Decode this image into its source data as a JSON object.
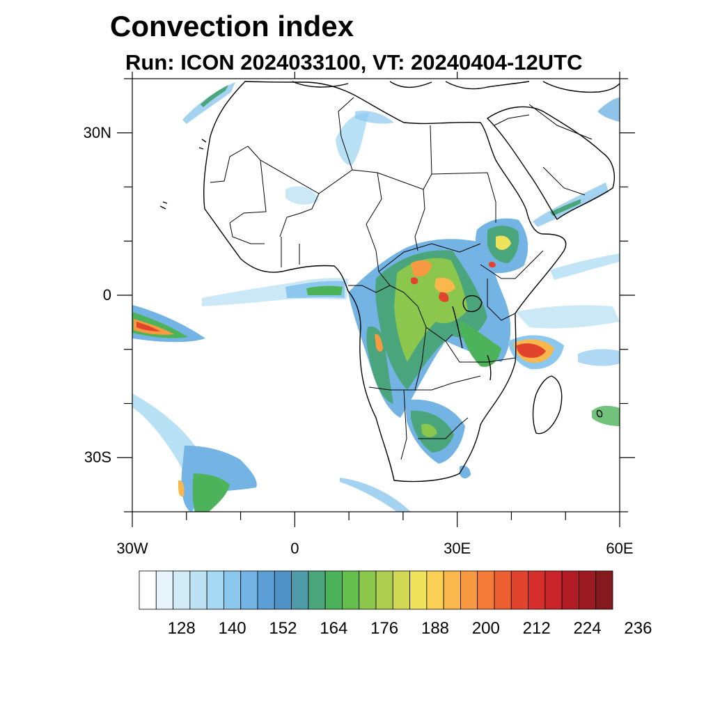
{
  "header": {
    "title": "Convection index",
    "subtitle": "Run: ICON 2024033100,  VT: 20240404-12UTC"
  },
  "map": {
    "lon_range": [
      -30,
      60
    ],
    "lat_range": [
      -40,
      40
    ],
    "lat_labels": [
      {
        "lat": 30,
        "text": "30N"
      },
      {
        "lat": 0,
        "text": "0"
      },
      {
        "lat": -30,
        "text": "30S"
      }
    ],
    "lon_labels": [
      {
        "lon": -30,
        "text": "30W"
      },
      {
        "lon": 0,
        "text": "0"
      },
      {
        "lon": 30,
        "text": "30E"
      },
      {
        "lon": 60,
        "text": "60E"
      }
    ],
    "minor_lat_ticks": [
      40,
      20,
      10,
      -10,
      -20,
      -40
    ],
    "minor_lon_ticks": [
      -20,
      -10,
      10,
      20,
      40,
      50
    ]
  },
  "colorbar": {
    "labels": [
      "128",
      "140",
      "152",
      "164",
      "176",
      "188",
      "200",
      "212",
      "224",
      "236"
    ],
    "colors": [
      "#ffffff",
      "#e8f4fb",
      "#d2ebf7",
      "#bde2f4",
      "#a6d9f3",
      "#8cc8ee",
      "#73b4e4",
      "#5b9fd6",
      "#4f93c6",
      "#4e9aa9",
      "#4ba57c",
      "#4db35a",
      "#63be4c",
      "#8bc64d",
      "#aece4f",
      "#d2d955",
      "#eee35b",
      "#fcd055",
      "#fab74c",
      "#f89a42",
      "#f47c38",
      "#ec5f31",
      "#e2432d",
      "#d72f2b",
      "#c8242a",
      "#b21d25",
      "#9c1a21",
      "#841a1d"
    ]
  },
  "colors": {
    "border": "#000000",
    "background": "#ffffff"
  }
}
